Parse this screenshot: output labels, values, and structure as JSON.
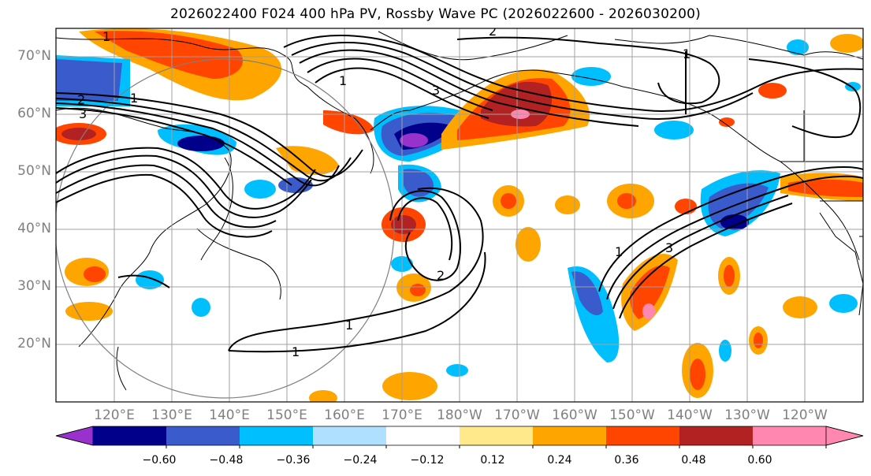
{
  "title": "2026022400 F024 400 hPa PV, Rossby Wave PC (2026022600 - 2026030200)",
  "map": {
    "lat_labels": [
      "70°N",
      "60°N",
      "50°N",
      "40°N",
      "30°N",
      "20°N"
    ],
    "lon_labels": [
      "120°E",
      "130°E",
      "140°E",
      "150°E",
      "160°E",
      "170°E",
      "180°W",
      "170°W",
      "160°W",
      "150°W",
      "140°W",
      "130°W",
      "120°W"
    ],
    "contour_labels": [
      "2",
      "1",
      "1",
      "2",
      "3",
      "1",
      "1",
      "2",
      "3",
      "1",
      "1",
      "3",
      "1"
    ]
  },
  "colorbar": {
    "ticks": [
      "−0.60",
      "−0.48",
      "−0.36",
      "−0.24",
      "−0.12",
      "0.12",
      "0.24",
      "0.36",
      "0.48",
      "0.60"
    ],
    "colors": {
      "under": "#9932cc",
      "bins": [
        "#9932cc",
        "#00008b",
        "#3a5bcb",
        "#00bfff",
        "#b0e0ff",
        "#ffffff",
        "#ffe98a",
        "#ffa500",
        "#ff4500",
        "#b22222",
        "#ff87b0"
      ],
      "over": "#ff87b0"
    }
  },
  "colors": {
    "label_gray": "#808080",
    "grid": "#a0a0a0"
  }
}
